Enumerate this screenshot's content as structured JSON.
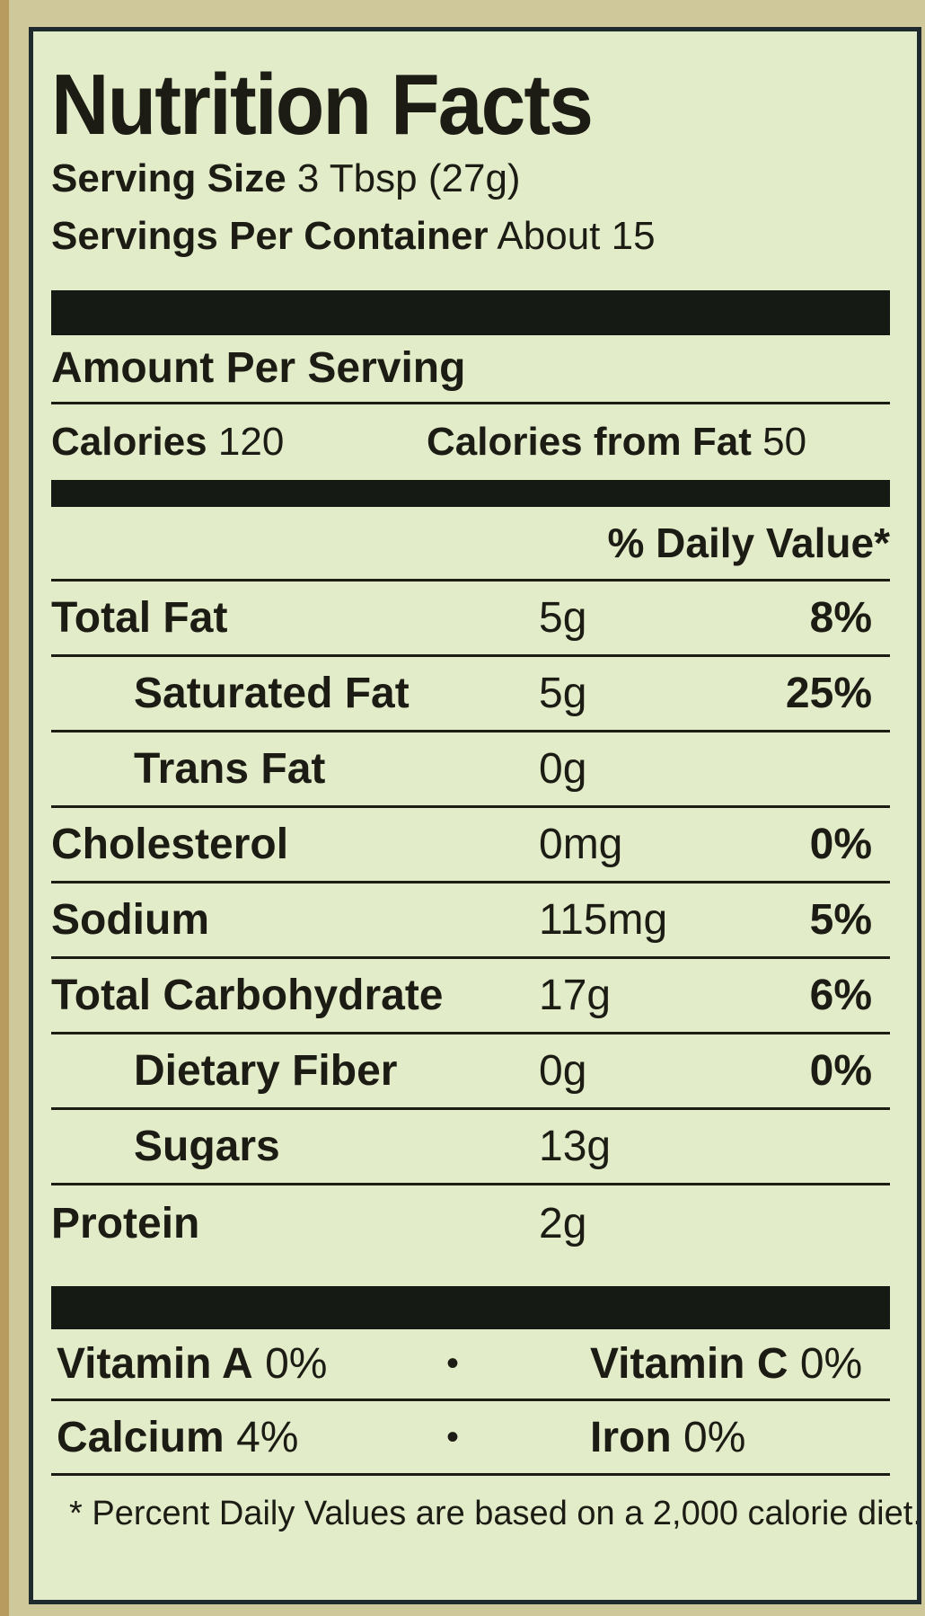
{
  "title": "Nutrition Facts",
  "serving": {
    "size_label": "Serving Size",
    "size_value": "3 Tbsp (27g)",
    "per_container_label": "Servings Per Container",
    "per_container_value": "About 15"
  },
  "amount_per_serving": "Amount Per Serving",
  "calories": {
    "label": "Calories",
    "value": "120",
    "fat_label": "Calories from Fat",
    "fat_value": "50"
  },
  "daily_value_header": "% Daily Value*",
  "nutrients": [
    {
      "name": "Total Fat",
      "amount": "5g",
      "dv": "8%"
    },
    {
      "name": "Saturated Fat",
      "amount": "5g",
      "dv": "25%"
    },
    {
      "name": "Trans Fat",
      "amount": "0g",
      "dv": ""
    },
    {
      "name": "Cholesterol",
      "amount": "0mg",
      "dv": "0%"
    },
    {
      "name": "Sodium",
      "amount": "115mg",
      "dv": "5%"
    },
    {
      "name": "Total Carbohydrate",
      "amount": "17g",
      "dv": "6%"
    },
    {
      "name": "Dietary Fiber",
      "amount": "0g",
      "dv": "0%"
    },
    {
      "name": "Sugars",
      "amount": "13g",
      "dv": ""
    },
    {
      "name": "Protein",
      "amount": "2g",
      "dv": ""
    }
  ],
  "vitamins": [
    {
      "left_name": "Vitamin A",
      "left_value": "0%",
      "separator": "•",
      "right_name": "Vitamin C",
      "right_value": "0%"
    },
    {
      "left_name": "Calcium",
      "left_value": "4%",
      "separator": "•",
      "right_name": "Iron",
      "right_value": "0%"
    }
  ],
  "footnote": "* Percent Daily Values are based on a 2,000 calorie diet.",
  "colors": {
    "panel": "#e2ecc9",
    "ink": "#1c1c14",
    "packaging": "#cfc89b"
  }
}
